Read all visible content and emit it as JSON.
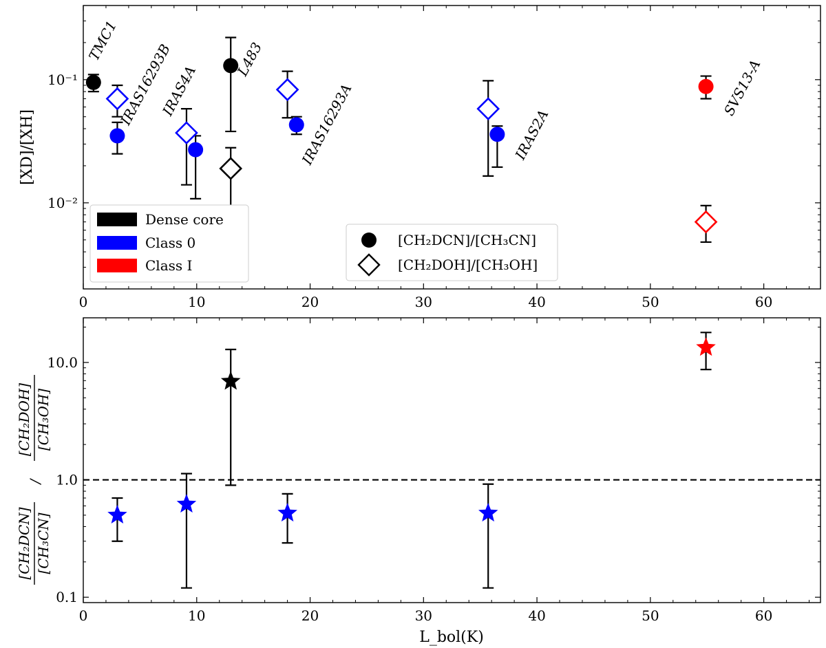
{
  "chart_data": [
    {
      "type": "scatter",
      "panel": "top",
      "yscale": "log",
      "ylabel": "[XD]/[XH]",
      "xlabel": "",
      "xlim": [
        0,
        65
      ],
      "ylim": [
        0.002,
        0.4
      ],
      "xticks": [
        0,
        10,
        20,
        30,
        40,
        50,
        60
      ],
      "xtick_labels": [
        "0",
        "10",
        "20",
        "30",
        "40",
        "50",
        "60"
      ],
      "yticks": [
        0.01,
        0.1
      ],
      "ytick_labels": [
        "10⁻²",
        "10⁻¹"
      ],
      "categories_legend": [
        {
          "name": "Dense core",
          "color": "#000000"
        },
        {
          "name": "Class 0",
          "color": "#0000ff"
        },
        {
          "name": "Class I",
          "color": "#ff0000"
        }
      ],
      "marker_legend": [
        {
          "marker": "circle-filled",
          "label": "[CH₂DCN]/[CH₃CN]"
        },
        {
          "marker": "diamond-open",
          "label": "[CH₂DOH]/[CH₃OH]"
        }
      ],
      "legend_placement": [
        "lower-left",
        "lower-center"
      ],
      "series": [
        {
          "name": "[CH₂DCN]/[CH₃CN]",
          "marker": "circle-filled",
          "points": [
            {
              "x": 0.9,
              "y": 0.095,
              "lo": 0.08,
              "hi": 0.11,
              "color": "#000000"
            },
            {
              "x": 3.0,
              "y": 0.035,
              "lo": 0.025,
              "hi": 0.045,
              "color": "#0000ff"
            },
            {
              "x": 9.9,
              "y": 0.027,
              "lo": 0.0108,
              "hi": 0.035,
              "color": "#0000ff"
            },
            {
              "x": 13.0,
              "y": 0.13,
              "lo": 0.038,
              "hi": 0.22,
              "color": "#000000"
            },
            {
              "x": 18.8,
              "y": 0.043,
              "lo": 0.036,
              "hi": 0.05,
              "color": "#0000ff"
            },
            {
              "x": 36.5,
              "y": 0.036,
              "lo": 0.0195,
              "hi": 0.042,
              "color": "#0000ff"
            },
            {
              "x": 54.9,
              "y": 0.088,
              "lo": 0.07,
              "hi": 0.107,
              "color": "#ff0000"
            }
          ]
        },
        {
          "name": "[CH₂DOH]/[CH₃OH]",
          "marker": "diamond-open",
          "points": [
            {
              "x": 3.0,
              "y": 0.07,
              "lo": 0.05,
              "hi": 0.09,
              "color": "#0000ff"
            },
            {
              "x": 9.1,
              "y": 0.037,
              "lo": 0.014,
              "hi": 0.058,
              "color": "#0000ff"
            },
            {
              "x": 13.0,
              "y": 0.019,
              "lo": 0.0095,
              "hi": 0.028,
              "color": "#000000"
            },
            {
              "x": 18.0,
              "y": 0.083,
              "lo": 0.049,
              "hi": 0.117,
              "color": "#0000ff"
            },
            {
              "x": 35.7,
              "y": 0.058,
              "lo": 0.0165,
              "hi": 0.098,
              "color": "#0000ff"
            },
            {
              "x": 54.9,
              "y": 0.007,
              "lo": 0.0048,
              "hi": 0.0095,
              "color": "#ff0000"
            }
          ]
        }
      ],
      "annotations": [
        {
          "text": "TMC1",
          "x": 1.2,
          "y": 0.14
        },
        {
          "text": "IRAS16293B",
          "x": 4.0,
          "y": 0.042
        },
        {
          "text": "IRAS4A",
          "x": 7.7,
          "y": 0.05
        },
        {
          "text": "L483",
          "x": 14.3,
          "y": 0.105
        },
        {
          "text": "IRAS16293A",
          "x": 20.0,
          "y": 0.02
        },
        {
          "text": "IRAS2A",
          "x": 38.8,
          "y": 0.022
        },
        {
          "text": "SVS13-A",
          "x": 57.2,
          "y": 0.05
        }
      ]
    },
    {
      "type": "scatter",
      "panel": "bottom",
      "yscale": "log",
      "xlabel": "L_bol(K)",
      "ylabel_parts": [
        "[CH₂DCN]",
        "[CH₃CN]",
        "/",
        "[CH₂DOH]",
        "[CH₃OH]"
      ],
      "xlim": [
        0,
        65
      ],
      "ylim": [
        0.09,
        24
      ],
      "xticks": [
        0,
        10,
        20,
        30,
        40,
        50,
        60
      ],
      "xtick_labels": [
        "0",
        "10",
        "20",
        "30",
        "40",
        "50",
        "60"
      ],
      "yticks": [
        0.1,
        1.0,
        10.0
      ],
      "ytick_labels": [
        "0.1",
        "1.0",
        "10.0"
      ],
      "reference_line": {
        "y": 1.0,
        "style": "dashed"
      },
      "series": [
        {
          "name": "ratio",
          "marker": "star",
          "points": [
            {
              "x": 3.0,
              "y": 0.5,
              "lo": 0.3,
              "hi": 0.7,
              "color": "#0000ff"
            },
            {
              "x": 9.1,
              "y": 0.62,
              "lo": 0.12,
              "hi": 1.13,
              "color": "#0000ff"
            },
            {
              "x": 13.0,
              "y": 6.9,
              "lo": 0.9,
              "hi": 12.9,
              "color": "#000000"
            },
            {
              "x": 18.0,
              "y": 0.52,
              "lo": 0.29,
              "hi": 0.76,
              "color": "#0000ff"
            },
            {
              "x": 35.7,
              "y": 0.52,
              "lo": 0.12,
              "hi": 0.92,
              "color": "#0000ff"
            },
            {
              "x": 54.9,
              "y": 13.4,
              "lo": 8.7,
              "hi": 18.0,
              "color": "#ff0000"
            }
          ]
        }
      ]
    }
  ]
}
